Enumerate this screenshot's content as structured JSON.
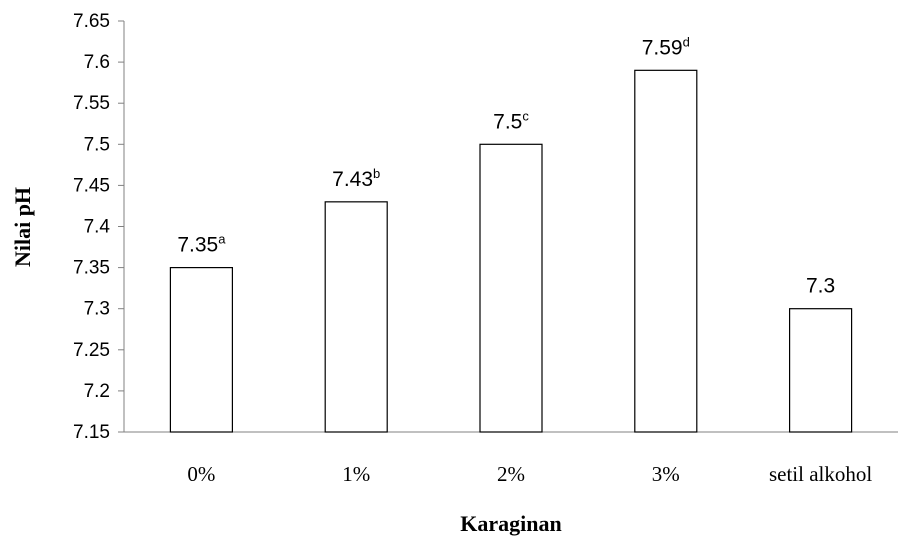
{
  "chart_data": {
    "type": "bar",
    "xlabel": "Karaginan",
    "ylabel": "Nilai pH",
    "categories": [
      "0%",
      "1%",
      "2%",
      "3%",
      "setil alkohol"
    ],
    "values": [
      7.35,
      7.43,
      7.5,
      7.59,
      7.3
    ],
    "data_labels": [
      {
        "value": "7.35",
        "sup": "a"
      },
      {
        "value": "7.43",
        "sup": "b"
      },
      {
        "value": "7.5",
        "sup": "c"
      },
      {
        "value": "7.59",
        "sup": "d"
      },
      {
        "value": "7.3",
        "sup": ""
      }
    ],
    "ylim": [
      7.15,
      7.65
    ],
    "yticks": [
      "7.15",
      "7.2",
      "7.25",
      "7.3",
      "7.35",
      "7.4",
      "7.45",
      "7.5",
      "7.55",
      "7.6",
      "7.65"
    ],
    "grid": false,
    "legend": "none",
    "colors": {
      "bar_fill": "#ffffff",
      "bar_stroke": "#000000",
      "axis": "#808080"
    }
  }
}
